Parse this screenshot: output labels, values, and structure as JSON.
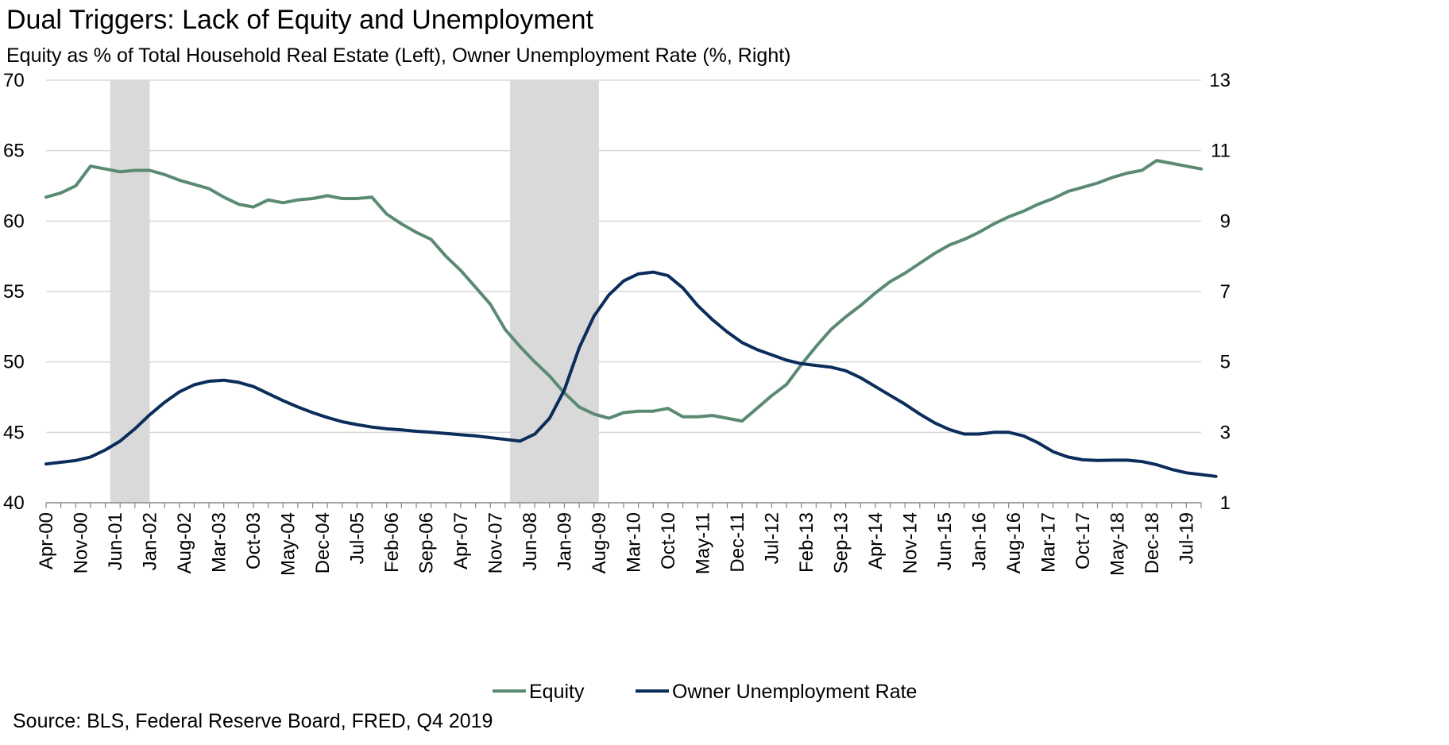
{
  "chart_data": {
    "type": "line",
    "title": "Dual Triggers: Lack of Equity and Unemployment",
    "subtitle": "Equity as % of Total Household Real Estate (Left), Owner Unemployment Rate (%, Right)",
    "source": "Source: BLS, Federal Reserve Board, FRED, Q4 2019",
    "x_tick_labels": [
      "Apr-00",
      "Nov-00",
      "Jun-01",
      "Jan-02",
      "Aug-02",
      "Mar-03",
      "Oct-03",
      "May-04",
      "Dec-04",
      "Jul-05",
      "Feb-06",
      "Sep-06",
      "Apr-07",
      "Nov-07",
      "Jun-08",
      "Jan-09",
      "Aug-09",
      "Mar-10",
      "Oct-10",
      "May-11",
      "Dec-11",
      "Jul-12",
      "Feb-13",
      "Sep-13",
      "Apr-14",
      "Nov-14",
      "Jun-15",
      "Jan-16",
      "Aug-16",
      "Mar-17",
      "Oct-17",
      "May-18",
      "Dec-18",
      "Jul-19"
    ],
    "y_left": {
      "ticks": [
        40,
        45,
        50,
        55,
        60,
        65,
        70
      ],
      "ylim": [
        40,
        70
      ]
    },
    "y_right": {
      "ticks": [
        1,
        3,
        5,
        7,
        9,
        11,
        13
      ],
      "ylim": [
        1,
        13
      ]
    },
    "recessions": [
      {
        "start": "2001-03",
        "end": "2001-11"
      },
      {
        "start": "2007-12",
        "end": "2009-06"
      }
    ],
    "legend": {
      "placement": "bottom-center"
    },
    "colors": {
      "equity": "#5b8a72",
      "unemployment": "#0b2d5b",
      "recession": "#d9d9d9",
      "grid": "#d9d9d9"
    },
    "series": [
      {
        "name": "Equity",
        "axis": "left",
        "start_quarter": "2000-Q1",
        "values": [
          61.7,
          62.0,
          62.5,
          63.9,
          63.7,
          63.5,
          63.6,
          63.6,
          63.3,
          62.9,
          62.6,
          62.3,
          61.7,
          61.2,
          61.0,
          61.5,
          61.3,
          61.5,
          61.6,
          61.8,
          61.6,
          61.6,
          61.7,
          60.5,
          59.8,
          59.2,
          58.7,
          57.5,
          56.5,
          55.3,
          54.1,
          52.3,
          51.1,
          50.0,
          49.0,
          47.8,
          46.8,
          46.3,
          46.0,
          46.4,
          46.5,
          46.5,
          46.7,
          46.1,
          46.1,
          46.2,
          46.0,
          45.8,
          46.7,
          47.6,
          48.4,
          49.8,
          51.1,
          52.3,
          53.2,
          54.0,
          54.9,
          55.7,
          56.3,
          57.0,
          57.7,
          58.3,
          58.7,
          59.2,
          59.8,
          60.3,
          60.7,
          61.2,
          61.6,
          62.1,
          62.4,
          62.7,
          63.1,
          63.4,
          63.6,
          64.3,
          64.1,
          63.9,
          63.7
        ]
      },
      {
        "name": "Owner Unemployment Rate",
        "axis": "right",
        "start_quarter": "2000-Q1",
        "values": [
          2.1,
          2.15,
          2.2,
          2.3,
          2.5,
          2.75,
          3.1,
          3.5,
          3.85,
          4.15,
          4.35,
          4.45,
          4.48,
          4.42,
          4.3,
          4.1,
          3.9,
          3.72,
          3.56,
          3.42,
          3.3,
          3.22,
          3.15,
          3.1,
          3.07,
          3.03,
          3.0,
          2.97,
          2.93,
          2.9,
          2.85,
          2.8,
          2.75,
          2.95,
          3.4,
          4.2,
          5.4,
          6.3,
          6.9,
          7.3,
          7.5,
          7.55,
          7.45,
          7.1,
          6.6,
          6.2,
          5.85,
          5.55,
          5.35,
          5.2,
          5.05,
          4.95,
          4.9,
          4.85,
          4.75,
          4.55,
          4.3,
          4.05,
          3.8,
          3.52,
          3.27,
          3.08,
          2.95,
          2.95,
          3.0,
          3.0,
          2.9,
          2.7,
          2.45,
          2.3,
          2.22,
          2.2,
          2.21,
          2.21,
          2.17,
          2.08,
          1.95,
          1.85,
          1.8,
          1.75
        ]
      }
    ]
  }
}
